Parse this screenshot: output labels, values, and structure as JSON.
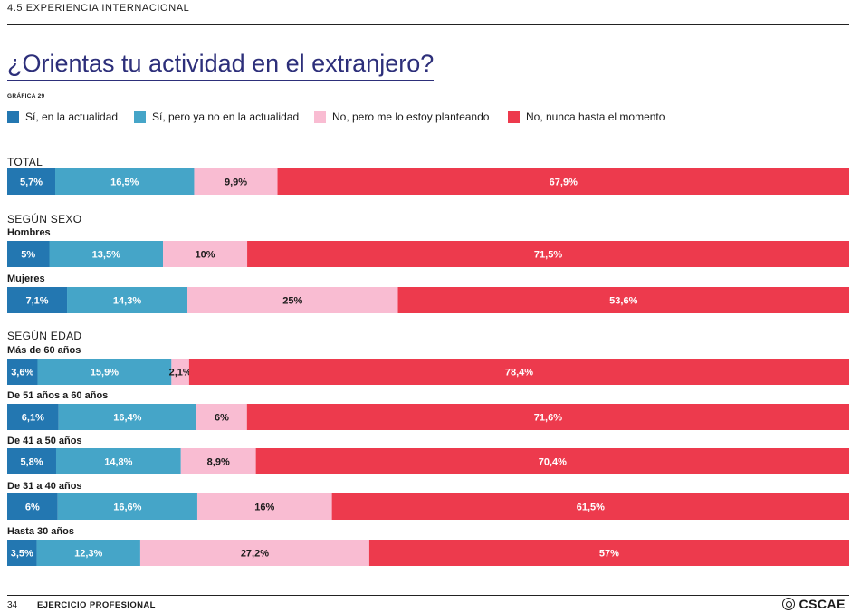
{
  "header": {
    "section": "4.5 EXPERIENCIA INTERNACIONAL"
  },
  "title": "¿Orientas tu actividad en el extranjero?",
  "figure_id": "GRÁFICA 29",
  "colors": {
    "si_actualidad": "#2377b1",
    "si_no_actualidad": "#45a5c8",
    "no_planteando": "#f9bcd2",
    "no_nunca": "#ed3a4d"
  },
  "legend": [
    {
      "label": "Sí, en la actualidad",
      "color": "#2377b1"
    },
    {
      "label": "Sí, pero ya no en la actualidad",
      "color": "#45a5c8"
    },
    {
      "label": "No, pero me lo estoy planteando",
      "color": "#f9bcd2"
    },
    {
      "label": "No, nunca hasta el momento",
      "color": "#ed3a4d"
    }
  ],
  "groups": {
    "total": "TOTAL",
    "sexo": "SEGÚN SEXO",
    "edad": "SEGÚN EDAD"
  },
  "chart_data": {
    "type": "bar",
    "orientation": "horizontal",
    "stacked": true,
    "unit": "%",
    "series_names": [
      "Sí, en la actualidad",
      "Sí, pero ya no en la actualidad",
      "No, pero me lo estoy planteando",
      "No, nunca hasta el momento"
    ],
    "rows": [
      {
        "label": "",
        "group": "TOTAL",
        "values": [
          5.7,
          16.5,
          9.9,
          67.9
        ],
        "value_labels": [
          "5,7%",
          "16,5%",
          "9,9%",
          "67,9%"
        ]
      },
      {
        "label": "Hombres",
        "group": "SEGÚN SEXO",
        "values": [
          5,
          13.5,
          10,
          71.5
        ],
        "value_labels": [
          "5%",
          "13,5%",
          "10%",
          "71,5%"
        ]
      },
      {
        "label": "Mujeres",
        "group": "SEGÚN SEXO",
        "values": [
          7.1,
          14.3,
          25,
          53.6
        ],
        "value_labels": [
          "7,1%",
          "14,3%",
          "25%",
          "53,6%"
        ]
      },
      {
        "label": "Más de 60 años",
        "group": "SEGÚN EDAD",
        "values": [
          3.6,
          15.9,
          2.1,
          78.4
        ],
        "value_labels": [
          "3,6%",
          "15,9%",
          "2,1%",
          "78,4%"
        ]
      },
      {
        "label": "De 51 años a 60 años",
        "group": "SEGÚN EDAD",
        "values": [
          6.1,
          16.4,
          6,
          71.6
        ],
        "value_labels": [
          "6,1%",
          "16,4%",
          "6%",
          "71,6%"
        ]
      },
      {
        "label": "De 41 a 50 años",
        "group": "SEGÚN EDAD",
        "values": [
          5.8,
          14.8,
          8.9,
          70.4
        ],
        "value_labels": [
          "5,8%",
          "14,8%",
          "8,9%",
          "70,4%"
        ]
      },
      {
        "label": "De 31 a 40 años",
        "group": "SEGÚN EDAD",
        "values": [
          6,
          16.6,
          16,
          61.5
        ],
        "value_labels": [
          "6%",
          "16,6%",
          "16%",
          "61,5%"
        ]
      },
      {
        "label": "Hasta 30 años",
        "group": "SEGÚN EDAD",
        "values": [
          3.5,
          12.3,
          27.2,
          57
        ],
        "value_labels": [
          "3,5%",
          "12,3%",
          "27,2%",
          "57%"
        ]
      }
    ]
  },
  "footer": {
    "page_number": "34",
    "section": "EJERCICIO PROFESIONAL",
    "brand": "CSCAE"
  }
}
